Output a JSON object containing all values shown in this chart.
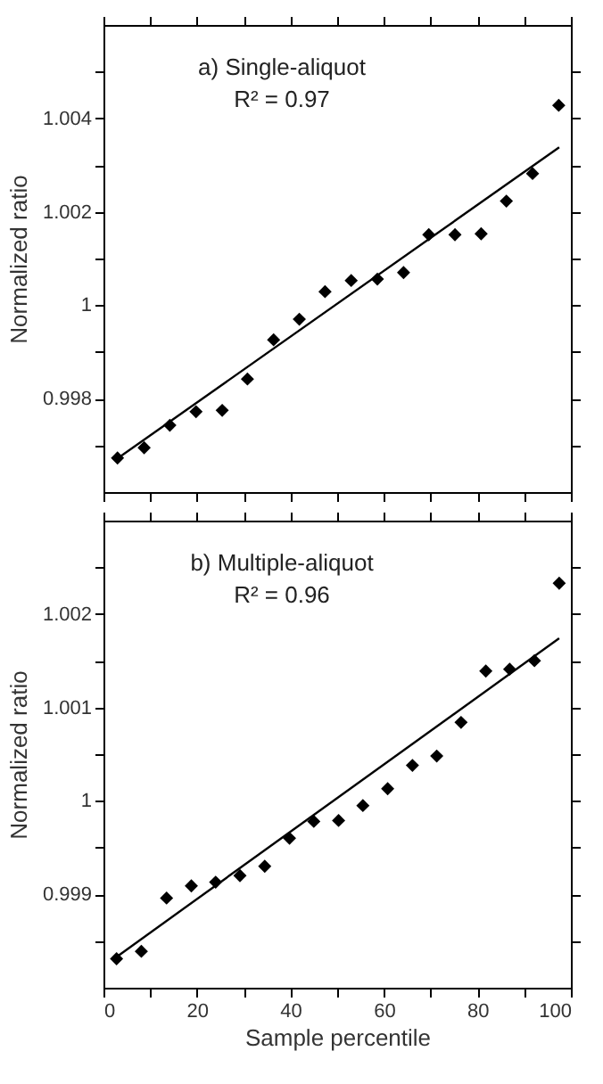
{
  "chart_data": [
    {
      "type": "scatter",
      "ylabel": "Normalized ratio",
      "annotations": [
        "a) Single-aliquot",
        "R² = 0.97"
      ],
      "grid": false,
      "tick_labels": "y",
      "xlim": [
        0,
        100
      ],
      "xticks": [
        0,
        {
          "value": 10,
          "label": null
        },
        {
          "value": 20,
          "label": null
        },
        {
          "value": 30,
          "label": null
        },
        {
          "value": 40,
          "label": null
        },
        {
          "value": 50,
          "label": null
        },
        {
          "value": 60,
          "label": null
        },
        {
          "value": 70,
          "label": null
        },
        {
          "value": 80,
          "label": null
        },
        {
          "value": 90,
          "label": null
        },
        {
          "value": 100,
          "label": null
        }
      ],
      "ylim": [
        0.996,
        1.006
      ],
      "yticks": [
        {
          "value": 0.997,
          "label": null
        },
        0.998,
        {
          "value": 0.999,
          "label": null
        },
        1,
        {
          "value": 1.001,
          "label": null
        },
        1.002,
        {
          "value": 1.003,
          "label": null
        },
        1.004,
        {
          "value": 1.005,
          "label": null
        }
      ],
      "x": [
        3.0,
        8.7,
        14.2,
        19.8,
        25.4,
        30.8,
        36.4,
        41.9,
        47.4,
        53.0,
        58.6,
        64.2,
        69.6,
        75.2,
        80.8,
        86.2,
        91.8,
        97.4
      ],
      "series": [
        {
          "color": "#000000",
          "marker": "diamond",
          "values": [
            0.99673,
            0.99695,
            0.99743,
            0.99772,
            0.99775,
            0.99842,
            0.99926,
            0.9997,
            1.00029,
            1.00053,
            1.00056,
            1.0007,
            1.00151,
            1.00151,
            1.00153,
            1.00223,
            1.00282,
            1.00428
          ]
        },
        {
          "type": "line",
          "marker": "none",
          "color": "#000000",
          "x": [
            3.0,
            97.5
          ],
          "values": [
            0.99672,
            1.00338
          ]
        }
      ]
    },
    {
      "type": "scatter",
      "xlabel": "Sample percentile",
      "ylabel": "Normalized ratio",
      "annotations": [
        "b) Multiple-aliquot",
        "R² = 0.96"
      ],
      "grid": false,
      "xlim": [
        0,
        100
      ],
      "xticks": [
        0,
        {
          "value": 10,
          "label": null
        },
        20,
        {
          "value": 30,
          "label": null
        },
        40,
        {
          "value": 50,
          "label": null
        },
        60,
        {
          "value": 70,
          "label": null
        },
        80,
        {
          "value": 90,
          "label": null
        },
        100
      ],
      "ylim": [
        0.998,
        1.003
      ],
      "yticks": [
        {
          "value": 0.9985,
          "label": null
        },
        0.999,
        {
          "value": 0.9995,
          "label": null
        },
        1,
        {
          "value": 1.0005,
          "label": null
        },
        1.001,
        {
          "value": 1.0015,
          "label": null
        },
        1.002,
        {
          "value": 1.0025,
          "label": null
        }
      ],
      "x": [
        2.8,
        8.1,
        13.5,
        18.8,
        24.0,
        29.2,
        34.5,
        39.8,
        45.0,
        50.3,
        55.5,
        60.8,
        66.1,
        71.3,
        76.5,
        81.8,
        86.9,
        92.2,
        97.5
      ],
      "series": [
        {
          "color": "#000000",
          "marker": "diamond",
          "values": [
            0.99831,
            0.99839,
            0.99896,
            0.99909,
            0.99913,
            0.9992,
            0.9993,
            0.9996,
            0.99978,
            0.99979,
            0.99995,
            1.00013,
            1.00038,
            1.00048,
            1.00084,
            1.00139,
            1.00141,
            1.0015,
            1.00233
          ]
        },
        {
          "type": "line",
          "marker": "none",
          "color": "#000000",
          "x": [
            2.8,
            97.5
          ],
          "values": [
            0.99833,
            1.00174
          ]
        }
      ]
    }
  ]
}
